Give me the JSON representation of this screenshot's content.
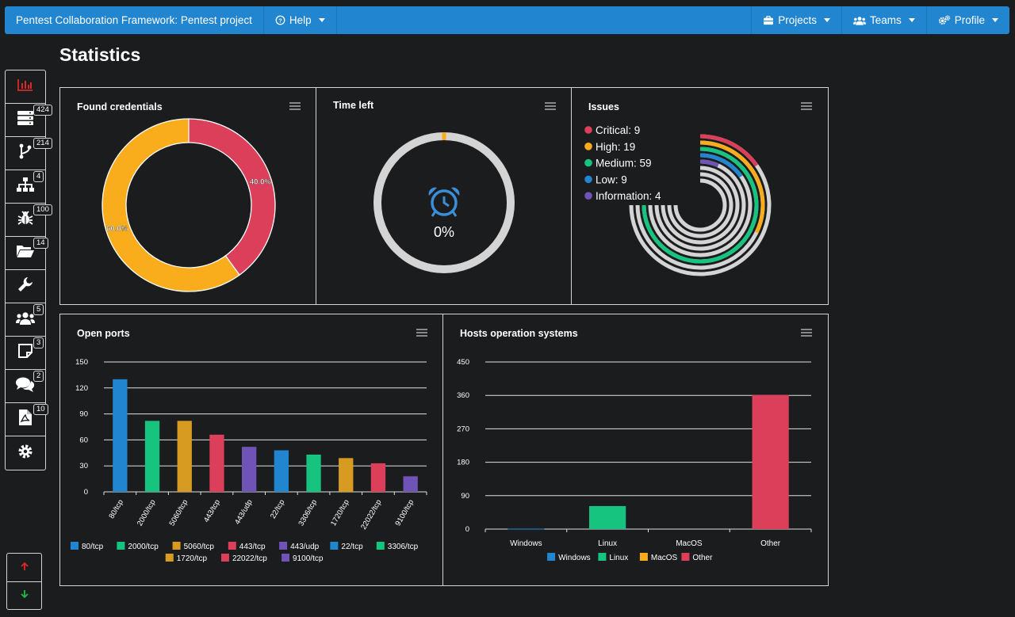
{
  "navbar": {
    "title": "Pentest Collaboration Framework: Pentest project",
    "help": "Help",
    "projects": "Projects",
    "teams": "Teams",
    "profile": "Profile"
  },
  "page_title": "Statistics",
  "sidebar": {
    "items": [
      {
        "icon": "chart-icon",
        "badge": ""
      },
      {
        "icon": "server-icon",
        "badge": "424"
      },
      {
        "icon": "branch-icon",
        "badge": "214"
      },
      {
        "icon": "sitemap-icon",
        "badge": "4"
      },
      {
        "icon": "bug-icon",
        "badge": "100"
      },
      {
        "icon": "folder-icon",
        "badge": "14"
      },
      {
        "icon": "wrench-icon",
        "badge": ""
      },
      {
        "icon": "users-icon",
        "badge": "5"
      },
      {
        "icon": "note-icon",
        "badge": "3"
      },
      {
        "icon": "comments-icon",
        "badge": "2"
      },
      {
        "icon": "pdf-icon",
        "badge": "10"
      },
      {
        "icon": "gear-icon",
        "badge": ""
      }
    ]
  },
  "credentials": {
    "title": "Found credentials",
    "slice1_label": "40.0%",
    "slice2_label": "60.0%"
  },
  "time_left": {
    "title": "Time left",
    "value": "0%"
  },
  "issues": {
    "title": "Issues",
    "legend": [
      {
        "label": "Critical: 9",
        "color": "#db3f59"
      },
      {
        "label": "High: 19",
        "color": "#f9ad1d"
      },
      {
        "label": "Medium: 59",
        "color": "#16c47f"
      },
      {
        "label": "Low: 9",
        "color": "#2185d0"
      },
      {
        "label": "Information: 4",
        "color": "#6f53b6"
      }
    ]
  },
  "open_ports": {
    "title": "Open ports",
    "legend_row1": [
      "80/tcp",
      "2000/tcp",
      "5060/tcp",
      "443/tcp",
      "443/udp",
      "22/tcp",
      "3306/tcp"
    ],
    "legend_row2": [
      "1720/tcp",
      "22022/tcp",
      "9100/tcp"
    ]
  },
  "hosts_os": {
    "title": "Hosts operation systems",
    "legend": [
      "Windows",
      "Linux",
      "MacOS",
      "Other"
    ]
  },
  "chart_data": [
    {
      "type": "pie",
      "title": "Found credentials",
      "categories": [
        "40.0%",
        "60.0%"
      ],
      "values": [
        40.0,
        60.0
      ],
      "colors": [
        "#db3f59",
        "#f9ad1d"
      ]
    },
    {
      "type": "pie",
      "title": "Time left",
      "values": [
        0,
        100
      ],
      "colors": [
        "#f9ad1d",
        "#d4d4d5"
      ]
    },
    {
      "type": "bar",
      "title": "Issues",
      "categories": [
        "Critical",
        "High",
        "Medium",
        "Low",
        "Information"
      ],
      "values": [
        9,
        19,
        59,
        9,
        4
      ],
      "colors": [
        "#db3f59",
        "#f9ad1d",
        "#16c47f",
        "#2185d0",
        "#6f53b6"
      ]
    },
    {
      "type": "bar",
      "title": "Open ports",
      "categories": [
        "80/tcp",
        "2000/tcp",
        "5060/tcp",
        "443/tcp",
        "443/udp",
        "22/tcp",
        "3306/tcp",
        "1720/tcp",
        "22022/tcp",
        "9100/tcp"
      ],
      "values": [
        130,
        82,
        82,
        66,
        52,
        48,
        43,
        39,
        33,
        18
      ],
      "colors": [
        "#2185d0",
        "#16c47f",
        "#d89b21",
        "#db3f59",
        "#6f53b6",
        "#2185d0",
        "#16c47f",
        "#d89b21",
        "#db3f59",
        "#6f53b6"
      ],
      "yticks": [
        "0",
        "30",
        "60",
        "90",
        "120",
        "150"
      ],
      "ylim": [
        0,
        150
      ],
      "grid": true
    },
    {
      "type": "bar",
      "title": "Hosts operation systems",
      "categories": [
        "Windows",
        "Linux",
        "MacOS",
        "Other"
      ],
      "values": [
        1,
        62,
        0,
        361
      ],
      "colors": [
        "#2185d0",
        "#16c47f",
        "#f9ad1d",
        "#db3f59"
      ],
      "yticks": [
        "0",
        "90",
        "180",
        "270",
        "360",
        "450"
      ],
      "ylim": [
        0,
        450
      ],
      "grid": true
    }
  ]
}
